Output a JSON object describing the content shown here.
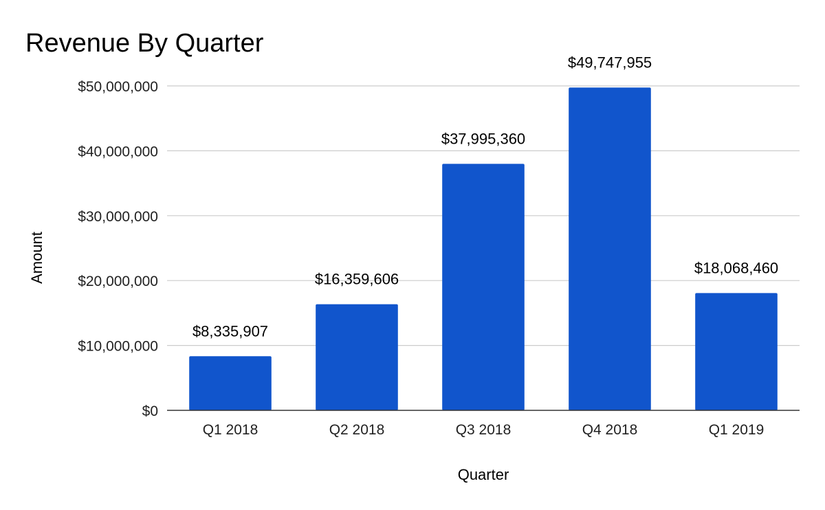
{
  "chart_data": {
    "type": "bar",
    "title": "Revenue By Quarter",
    "xlabel": "Quarter",
    "ylabel": "Amount",
    "categories": [
      "Q1 2018",
      "Q2 2018",
      "Q3 2018",
      "Q4 2018",
      "Q1 2019"
    ],
    "values": [
      8335907,
      16359606,
      37995360,
      49747955,
      18068460
    ],
    "data_labels": [
      "$8,335,907",
      "$16,359,606",
      "$37,995,360",
      "$49,747,955",
      "$18,068,460"
    ],
    "ylim": [
      0,
      50000000
    ],
    "yticks": [
      0,
      10000000,
      20000000,
      30000000,
      40000000,
      50000000
    ],
    "ytick_labels": [
      "$0",
      "$10,000,000",
      "$20,000,000",
      "$30,000,000",
      "$40,000,000",
      "$50,000,000"
    ],
    "grid": true,
    "legend": "none",
    "bar_color": "#1155cc"
  }
}
